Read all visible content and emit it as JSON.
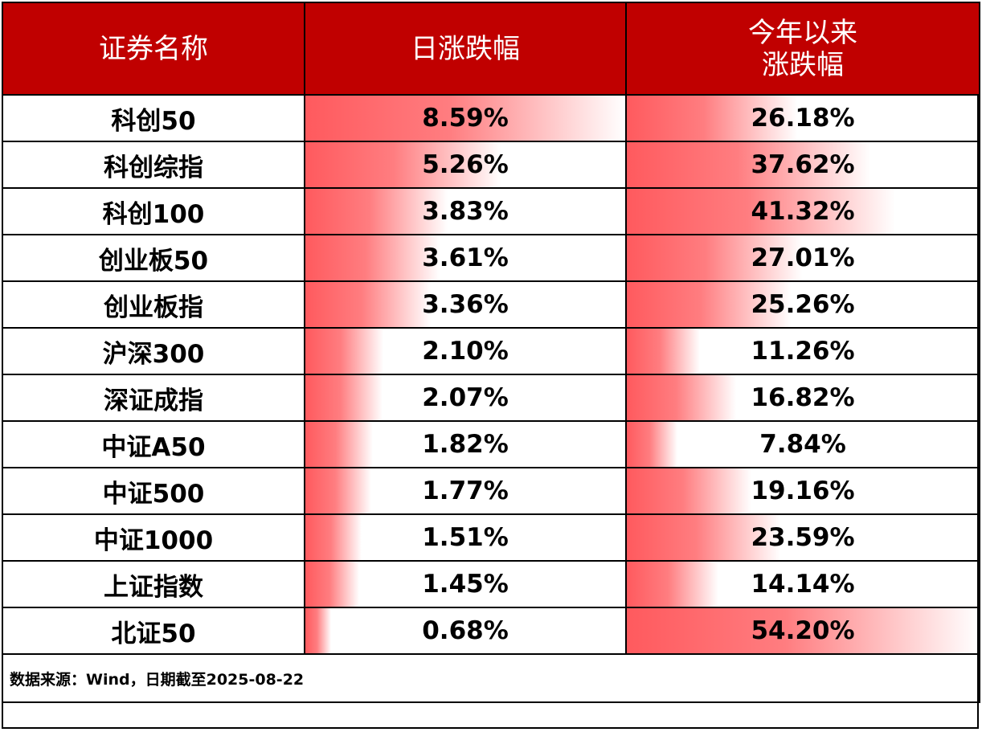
{
  "chart_data": {
    "type": "table",
    "columns": [
      "证券名称",
      "日涨跌幅",
      "今年以来涨跌幅"
    ],
    "header": {
      "col1": "证券名称",
      "col2": "日涨跌幅",
      "col3_line1": "今年以来",
      "col3_line2": "涨跌幅"
    },
    "rows": [
      {
        "name": "科创50",
        "daily": 8.59,
        "daily_text": "8.59%",
        "ytd": 26.18,
        "ytd_text": "26.18%"
      },
      {
        "name": "科创综指",
        "daily": 5.26,
        "daily_text": "5.26%",
        "ytd": 37.62,
        "ytd_text": "37.62%"
      },
      {
        "name": "科创100",
        "daily": 3.83,
        "daily_text": "3.83%",
        "ytd": 41.32,
        "ytd_text": "41.32%"
      },
      {
        "name": "创业板50",
        "daily": 3.61,
        "daily_text": "3.61%",
        "ytd": 27.01,
        "ytd_text": "27.01%"
      },
      {
        "name": "创业板指",
        "daily": 3.36,
        "daily_text": "3.36%",
        "ytd": 25.26,
        "ytd_text": "25.26%"
      },
      {
        "name": "沪深300",
        "daily": 2.1,
        "daily_text": "2.10%",
        "ytd": 11.26,
        "ytd_text": "11.26%"
      },
      {
        "name": "深证成指",
        "daily": 2.07,
        "daily_text": "2.07%",
        "ytd": 16.82,
        "ytd_text": "16.82%"
      },
      {
        "name": "中证A50",
        "daily": 1.82,
        "daily_text": "1.82%",
        "ytd": 7.84,
        "ytd_text": "7.84%"
      },
      {
        "name": "中证500",
        "daily": 1.77,
        "daily_text": "1.77%",
        "ytd": 19.16,
        "ytd_text": "19.16%"
      },
      {
        "name": "中证1000",
        "daily": 1.51,
        "daily_text": "1.51%",
        "ytd": 23.59,
        "ytd_text": "23.59%"
      },
      {
        "name": "上证指数",
        "daily": 1.45,
        "daily_text": "1.45%",
        "ytd": 14.14,
        "ytd_text": "14.14%"
      },
      {
        "name": "北证50",
        "daily": 0.68,
        "daily_text": "0.68%",
        "ytd": 54.2,
        "ytd_text": "54.20%"
      }
    ],
    "footer": "数据来源：Wind，日期截至2025-08-22"
  },
  "colors": {
    "header_bg": "#c00000",
    "header_text": "#ffffff",
    "bar": "#ff5a5e"
  }
}
